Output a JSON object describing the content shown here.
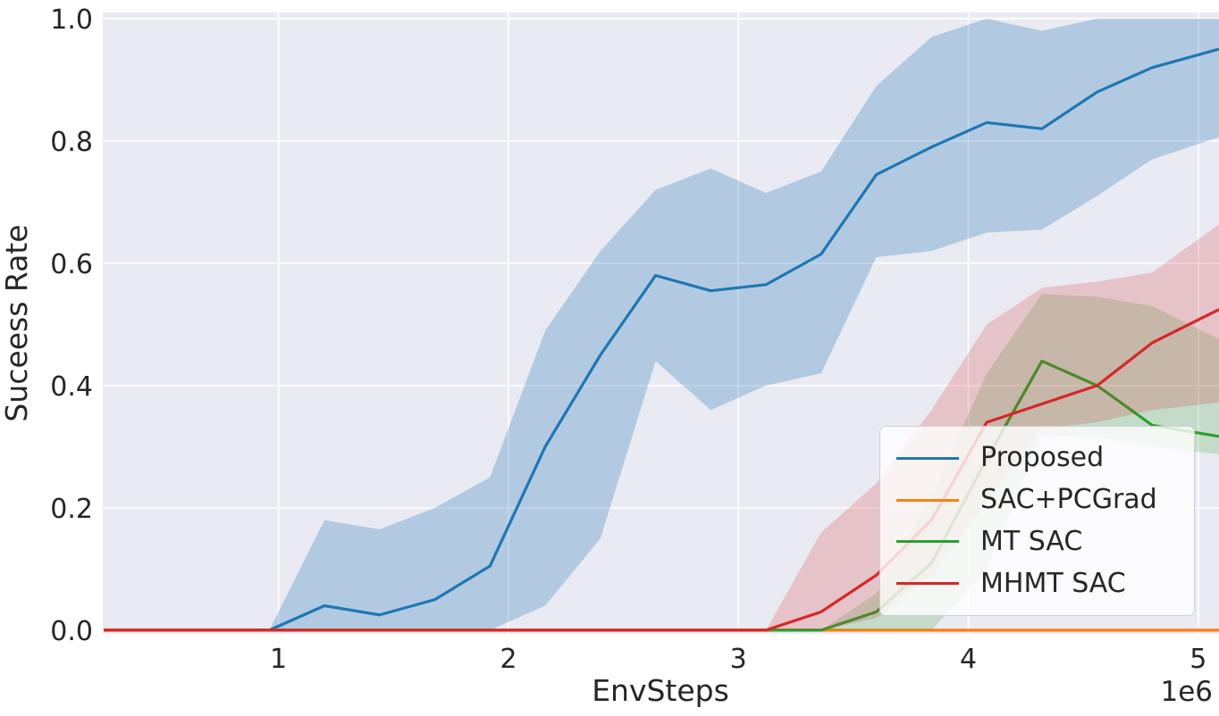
{
  "figure": {
    "background": "#ffffff",
    "plot_background": "#eaeaf2",
    "grid_color": "#ffffff",
    "text_color": "#262626"
  },
  "chart_data": {
    "type": "line",
    "title": "",
    "xlabel": "EnvSteps",
    "ylabel": "Suceess Rate",
    "x_offset_label": "1e6",
    "x_unit": "1e6 environment steps",
    "grid": true,
    "legend_position": "lower right",
    "xlim": [
      0.236,
      5.09
    ],
    "ylim": [
      -0.006,
      1.01
    ],
    "xticks": {
      "values": [
        1,
        2,
        3,
        4,
        5
      ],
      "labels": [
        "1",
        "2",
        "3",
        "4",
        "5"
      ]
    },
    "yticks": {
      "values": [
        0.0,
        0.2,
        0.4,
        0.6,
        0.8,
        1.0
      ],
      "labels": [
        "0.0",
        "0.2",
        "0.4",
        "0.6",
        "0.8",
        "1.0"
      ]
    },
    "x": [
      0.24,
      0.48,
      0.72,
      0.96,
      1.2,
      1.44,
      1.68,
      1.92,
      2.16,
      2.4,
      2.64,
      2.88,
      3.12,
      3.36,
      3.6,
      3.84,
      4.08,
      4.32,
      4.56,
      4.8,
      5.04
    ],
    "series": [
      {
        "name": "Proposed",
        "color": "#1f77b4",
        "band_alpha": 0.27,
        "values": [
          0,
          0,
          0,
          0,
          0.04,
          0.025,
          0.05,
          0.105,
          0.3,
          0.45,
          0.58,
          0.555,
          0.565,
          0.615,
          0.745,
          0.79,
          0.83,
          0.82,
          0.88,
          0.92,
          0.945
        ],
        "band_lower": [
          0,
          0,
          0,
          0,
          0,
          0,
          0,
          0,
          0.04,
          0.15,
          0.44,
          0.36,
          0.4,
          0.42,
          0.61,
          0.62,
          0.65,
          0.655,
          0.71,
          0.77,
          0.8
        ],
        "band_upper": [
          0,
          0,
          0,
          0,
          0.18,
          0.165,
          0.2,
          0.25,
          0.49,
          0.62,
          0.72,
          0.755,
          0.715,
          0.75,
          0.89,
          0.97,
          1.0,
          0.98,
          1.0,
          1.0,
          1.0
        ]
      },
      {
        "name": "SAC+PCGrad",
        "color": "#ff7f0e",
        "band_alpha": 0.2,
        "values": [
          0,
          0,
          0,
          0,
          0,
          0,
          0,
          0,
          0,
          0,
          0,
          0,
          0,
          0,
          0,
          0,
          0,
          0,
          0,
          0,
          0
        ],
        "band_lower": [
          0,
          0,
          0,
          0,
          0,
          0,
          0,
          0,
          0,
          0,
          0,
          0,
          0,
          0,
          0,
          0,
          0,
          0,
          0,
          0,
          0
        ],
        "band_upper": [
          0,
          0,
          0,
          0,
          0,
          0,
          0,
          0,
          0,
          0,
          0,
          0,
          0,
          0,
          0,
          0,
          0,
          0,
          0,
          0,
          0
        ]
      },
      {
        "name": "MT SAC",
        "color": "#2ca02c",
        "band_alpha": 0.2,
        "values": [
          0,
          0,
          0,
          0,
          0,
          0,
          0,
          0,
          0,
          0,
          0,
          0,
          0,
          0,
          0.03,
          0.11,
          0.28,
          0.44,
          0.4,
          0.335,
          0.32
        ],
        "band_lower": [
          0,
          0,
          0,
          0,
          0,
          0,
          0,
          0,
          0,
          0,
          0,
          0,
          0,
          0,
          0,
          0,
          0.1,
          0.32,
          0.315,
          0.3,
          0.29
        ],
        "band_upper": [
          0,
          0,
          0,
          0,
          0,
          0,
          0,
          0,
          0,
          0,
          0,
          0,
          0,
          0,
          0.06,
          0.22,
          0.42,
          0.55,
          0.545,
          0.53,
          0.485
        ]
      },
      {
        "name": "MHMT SAC",
        "color": "#d62728",
        "band_alpha": 0.2,
        "values": [
          0,
          0,
          0,
          0,
          0,
          0,
          0,
          0,
          0,
          0,
          0,
          0,
          0,
          0.03,
          0.09,
          0.18,
          0.34,
          0.37,
          0.4,
          0.47,
          0.515
        ],
        "band_lower": [
          0,
          0,
          0,
          0,
          0,
          0,
          0,
          0,
          0,
          0,
          0,
          0,
          0,
          0,
          0.02,
          0.09,
          0.21,
          0.33,
          0.34,
          0.36,
          0.37
        ],
        "band_upper": [
          0,
          0,
          0,
          0,
          0,
          0,
          0,
          0,
          0,
          0,
          0,
          0,
          0,
          0.16,
          0.24,
          0.36,
          0.5,
          0.56,
          0.57,
          0.585,
          0.65
        ]
      }
    ]
  }
}
